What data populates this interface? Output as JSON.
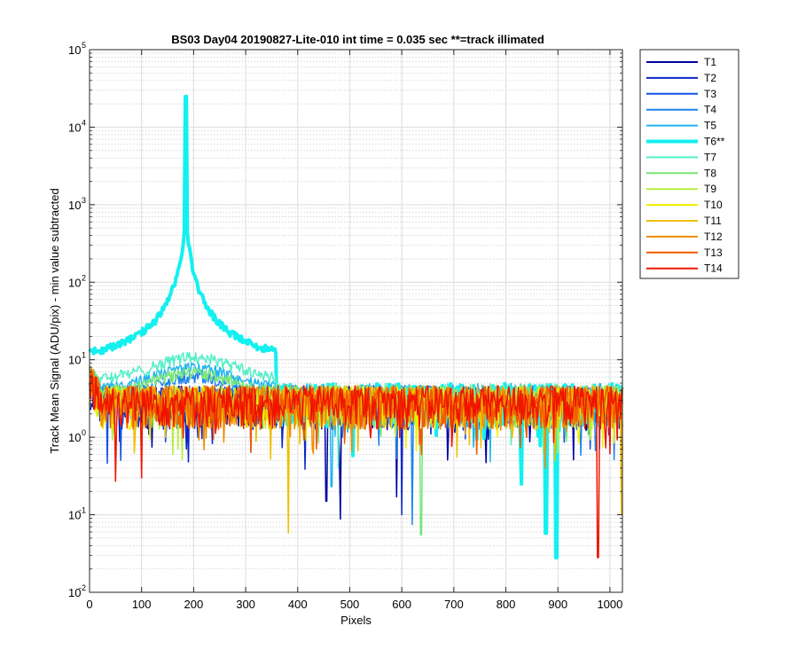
{
  "chart_data": {
    "type": "line",
    "title": "BS03 Day04 20190827-Lite-010 int time = 0.035 sec   **=track illimated",
    "xlabel": "Pixels",
    "ylabel": "Track Mean Signal (ADU/pix) - min value subtracted",
    "xlim": [
      0,
      1024
    ],
    "ylim": [
      0.01,
      100000
    ],
    "yscale": "log",
    "grid": true,
    "minor_grid": true,
    "legend_position": "outside-top-right",
    "x_ticks": [
      "0",
      "100",
      "200",
      "300",
      "400",
      "500",
      "600",
      "700",
      "800",
      "900",
      "1000"
    ],
    "y_ticks": [
      {
        "base": "10",
        "exp": "-2"
      },
      {
        "base": "10",
        "exp": "-1"
      },
      {
        "base": "10",
        "exp": "0"
      },
      {
        "base": "10",
        "exp": "1"
      },
      {
        "base": "10",
        "exp": "2"
      },
      {
        "base": "10",
        "exp": "3"
      },
      {
        "base": "10",
        "exp": "4"
      },
      {
        "base": "10",
        "exp": "5"
      }
    ],
    "series": [
      {
        "name": "T1",
        "color": "#0000a0",
        "baseline": 2.8,
        "hump": 0,
        "width": 1.5
      },
      {
        "name": "T2",
        "color": "#0a28c8",
        "baseline": 2.8,
        "hump": 0,
        "width": 1.5
      },
      {
        "name": "T3",
        "color": "#1450e6",
        "baseline": 2.8,
        "hump": 0,
        "width": 1.5
      },
      {
        "name": "T4",
        "color": "#1e82f0",
        "baseline": 2.9,
        "hump": 6,
        "width": 1.5
      },
      {
        "name": "T5",
        "color": "#1eb4f0",
        "baseline": 3.0,
        "hump": 8,
        "width": 1.5
      },
      {
        "name": "T6**",
        "color": "#14f0f0",
        "baseline": 3.0,
        "peak": 50000,
        "peak_x": 185,
        "width": 4
      },
      {
        "name": "T7",
        "color": "#50f0c8",
        "baseline": 3.0,
        "hump": 11,
        "width": 1.5
      },
      {
        "name": "T8",
        "color": "#78e678",
        "baseline": 2.9,
        "hump": 7,
        "width": 1.5
      },
      {
        "name": "T9",
        "color": "#b4f03c",
        "baseline": 2.8,
        "hump": 0,
        "width": 1.5
      },
      {
        "name": "T10",
        "color": "#f0f000",
        "baseline": 2.8,
        "hump": 0,
        "width": 1.5
      },
      {
        "name": "T11",
        "color": "#f0be00",
        "baseline": 2.8,
        "hump": 0,
        "width": 1.5
      },
      {
        "name": "T12",
        "color": "#f08c00",
        "baseline": 2.8,
        "hump": 0,
        "width": 1.5
      },
      {
        "name": "T13",
        "color": "#f05a00",
        "baseline": 2.8,
        "hump": 0,
        "width": 1.5
      },
      {
        "name": "T14",
        "color": "#f01400",
        "baseline": 2.8,
        "hump": 0,
        "width": 1.5
      }
    ],
    "dips": [
      {
        "series": "T14",
        "x": 50,
        "y": 0.27
      },
      {
        "series": "T14",
        "x": 100,
        "y": 0.3
      },
      {
        "series": "T11",
        "x": 382,
        "y": 0.058
      },
      {
        "series": "T1",
        "x": 482,
        "y": 0.088
      },
      {
        "series": "T1",
        "x": 455,
        "y": 0.15
      },
      {
        "series": "T5",
        "x": 465,
        "y": 0.23
      },
      {
        "series": "T2",
        "x": 600,
        "y": 0.1
      },
      {
        "series": "T1",
        "x": 590,
        "y": 0.17
      },
      {
        "series": "T4",
        "x": 620,
        "y": 0.075
      },
      {
        "series": "T8",
        "x": 637,
        "y": 0.055
      },
      {
        "series": "T6**",
        "x": 877,
        "y": 0.058
      },
      {
        "series": "T6**",
        "x": 897,
        "y": 0.028
      },
      {
        "series": "T6**",
        "x": 830,
        "y": 0.25
      },
      {
        "series": "T14",
        "x": 977,
        "y": 0.028
      },
      {
        "series": "T11",
        "x": 1022,
        "y": 0.1
      }
    ]
  }
}
